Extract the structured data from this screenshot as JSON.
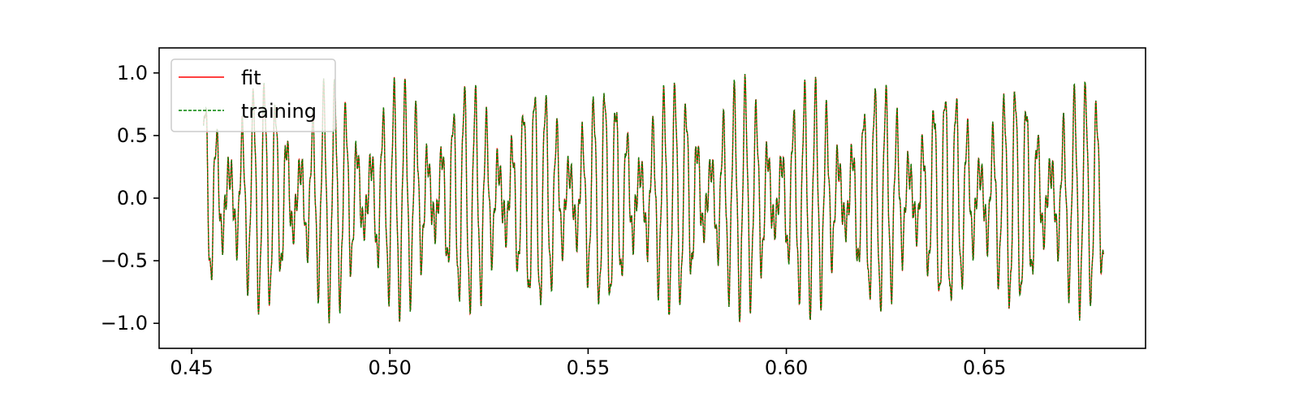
{
  "chart_data": {
    "type": "line",
    "title": "",
    "xlabel": "",
    "ylabel": "",
    "xlim": [
      0.4418,
      0.6906
    ],
    "ylim": [
      -1.2,
      1.2
    ],
    "x_ticks": [
      {
        "value": 0.45,
        "label": "0.45"
      },
      {
        "value": 0.5,
        "label": "0.50"
      },
      {
        "value": 0.55,
        "label": "0.55"
      },
      {
        "value": 0.6,
        "label": "0.60"
      },
      {
        "value": 0.65,
        "label": "0.65"
      }
    ],
    "y_ticks": [
      {
        "value": 1.0,
        "label": "1.0"
      },
      {
        "value": 0.5,
        "label": "0.5"
      },
      {
        "value": 0.0,
        "label": "0.0"
      },
      {
        "value": -0.5,
        "label": "−0.5"
      },
      {
        "value": -1.0,
        "label": "−1.0"
      }
    ],
    "x_range": [
      0.453,
      0.68
    ],
    "y_extent": [
      -1.0,
      1.0
    ],
    "grid": false,
    "legend_position": "top-left",
    "series": [
      {
        "name": "fit",
        "color": "#ff0000",
        "style": "solid",
        "shape": "dense oscillating waveform, amplitude approx. ±1.0"
      },
      {
        "name": "training",
        "color": "#008000",
        "style": "dashed",
        "shape": "dense oscillating waveform, amplitude approx. ±1.0"
      }
    ]
  }
}
